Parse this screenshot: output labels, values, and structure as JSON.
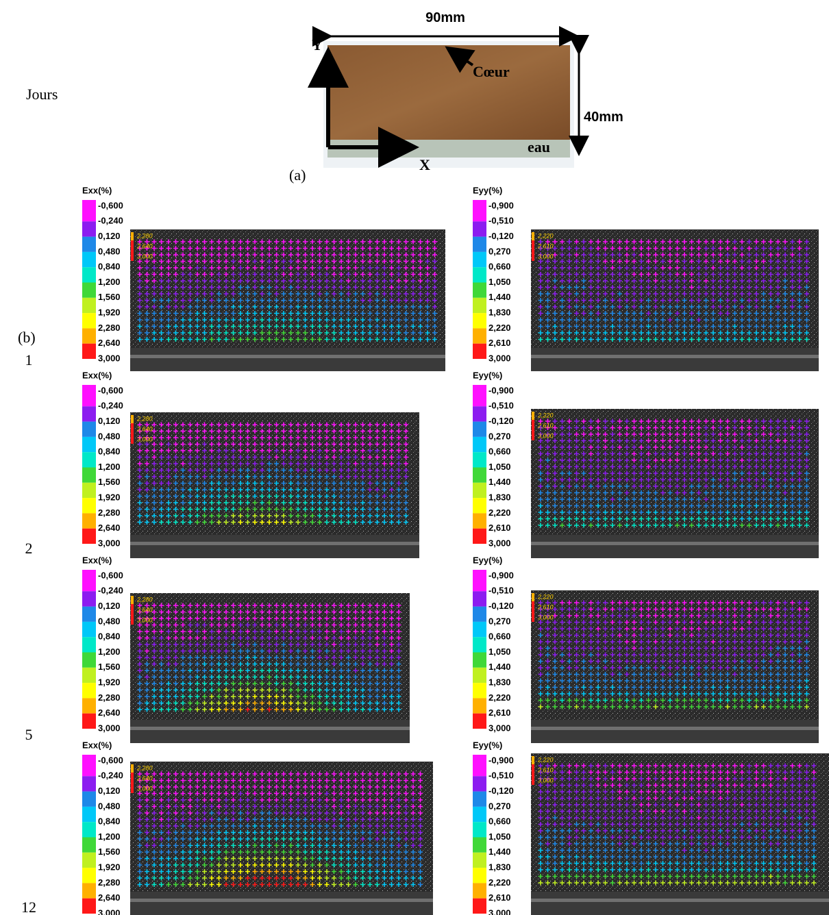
{
  "header": {
    "label": "Jours"
  },
  "specimen": {
    "width": "90mm",
    "height": "40mm",
    "y_axis": "Y",
    "x_axis": "X",
    "core": "Cœur",
    "water": "eau",
    "caption": "(a)"
  },
  "part_b": "(b)",
  "scales": {
    "exx": {
      "title": "Exx(%)",
      "levels": [
        "-0,600",
        "-0,240",
        "0,120",
        "0,480",
        "0,840",
        "1,200",
        "1,560",
        "1,920",
        "2,280",
        "2,640",
        "3,000"
      ],
      "overlay": [
        "2,280",
        "2,640",
        "3,000"
      ]
    },
    "eyy": {
      "title": "Eyy(%)",
      "levels": [
        "-0,900",
        "-0,510",
        "-0,120",
        "0,270",
        "0,660",
        "1,050",
        "1,440",
        "1,830",
        "2,220",
        "2,610",
        "3,000"
      ],
      "overlay": [
        "2,220",
        "2,610",
        "3,000"
      ]
    }
  },
  "rows": [
    {
      "day": "1"
    },
    {
      "day": "2"
    },
    {
      "day": "5"
    },
    {
      "day": "12"
    }
  ]
}
